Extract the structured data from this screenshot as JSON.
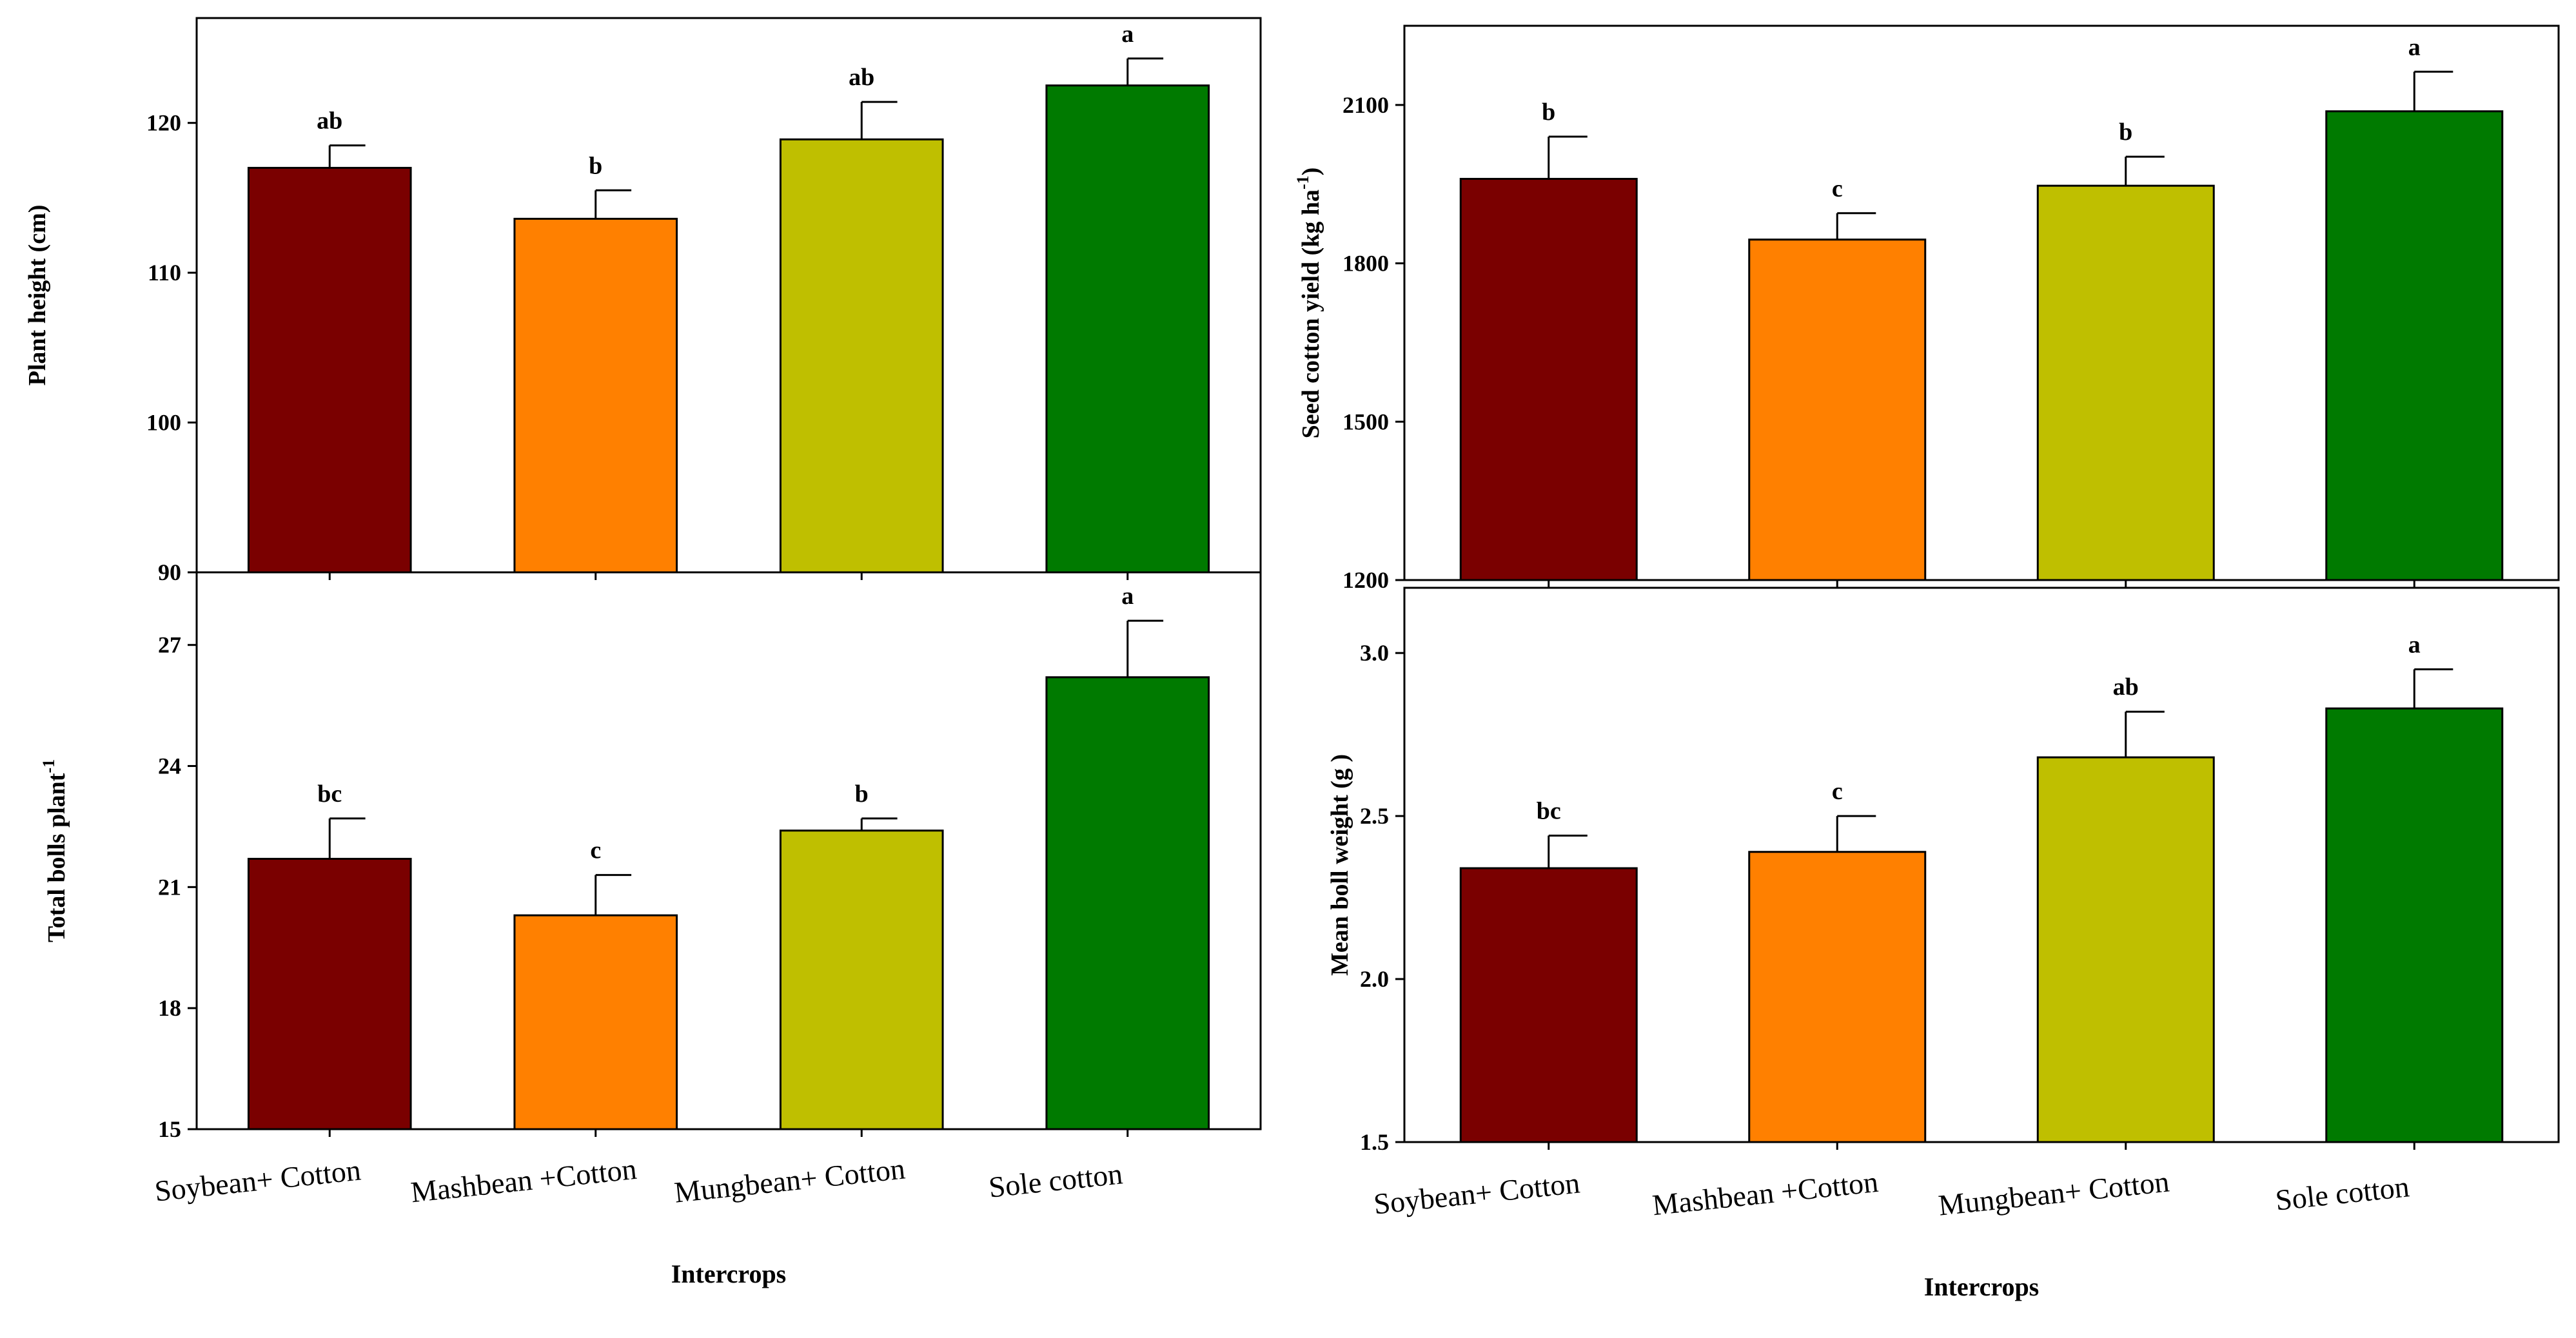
{
  "chart_data": [
    {
      "type": "bar",
      "categories": [
        "Soybean+ Cotton",
        "Mashbean +Cotton",
        "Mungbean+ Cotton",
        "Sole cotton"
      ],
      "values": [
        117,
        113.6,
        118.9,
        122.5
      ],
      "errors": [
        1.5,
        1.9,
        2.5,
        1.8
      ],
      "significance": [
        "ab",
        "b",
        "ab",
        "a"
      ],
      "colors": [
        "#7a0000",
        "#ff8000",
        "#bfbf00",
        "#007a00"
      ],
      "ylabel": "Plant height (cm)",
      "ylim": [
        90,
        127
      ],
      "yticks": [
        90,
        100,
        110,
        120
      ],
      "xlabel": "",
      "show_category_labels": false
    },
    {
      "type": "bar",
      "categories": [
        "Soybean+ Cotton",
        "Mashbean +Cotton",
        "Mungbean+ Cotton",
        "Sole cotton"
      ],
      "values": [
        21.7,
        20.3,
        22.4,
        26.2
      ],
      "errors": [
        1.0,
        1.0,
        0.3,
        1.4
      ],
      "significance": [
        "bc",
        "c",
        "b",
        "a"
      ],
      "colors": [
        "#7a0000",
        "#ff8000",
        "#bfbf00",
        "#007a00"
      ],
      "ylabel": "Total bolls plant",
      "ylabel_sup": "-1",
      "ylim": [
        15,
        28.8
      ],
      "yticks": [
        15,
        18,
        21,
        24,
        27
      ],
      "xlabel": "Intercrops",
      "show_category_labels": true
    },
    {
      "type": "bar",
      "categories": [
        "Soybean+ Cotton",
        "Mashbean +Cotton",
        "Mungbean+ Cotton",
        "Sole cotton"
      ],
      "values": [
        1960,
        1845,
        1947,
        2088
      ],
      "errors": [
        80,
        50,
        55,
        75
      ],
      "significance": [
        "b",
        "c",
        "b",
        "a"
      ],
      "colors": [
        "#7a0000",
        "#ff8000",
        "#bfbf00",
        "#007a00"
      ],
      "ylabel": "Seed cotton yield (kg ha",
      "ylabel_sup": "-1",
      "ylabel_close": ")",
      "ylim": [
        1200,
        2250
      ],
      "yticks": [
        1200,
        1500,
        1800,
        2100
      ],
      "xlabel": "",
      "show_category_labels": false
    },
    {
      "type": "bar",
      "categories": [
        "Soybean+ Cotton",
        "Mashbean +Cotton",
        "Mungbean+ Cotton",
        "Sole cotton"
      ],
      "values": [
        2.34,
        2.39,
        2.68,
        2.83
      ],
      "errors": [
        0.1,
        0.11,
        0.14,
        0.12
      ],
      "significance": [
        "bc",
        "c",
        "ab",
        "a"
      ],
      "colors": [
        "#7a0000",
        "#ff8000",
        "#bfbf00",
        "#007a00"
      ],
      "ylabel": "Mean boll weight (g )",
      "ylim": [
        1.5,
        3.2
      ],
      "yticks": [
        1.5,
        2.0,
        2.5,
        3.0
      ],
      "xlabel": "Intercrops",
      "show_category_labels": true
    }
  ]
}
